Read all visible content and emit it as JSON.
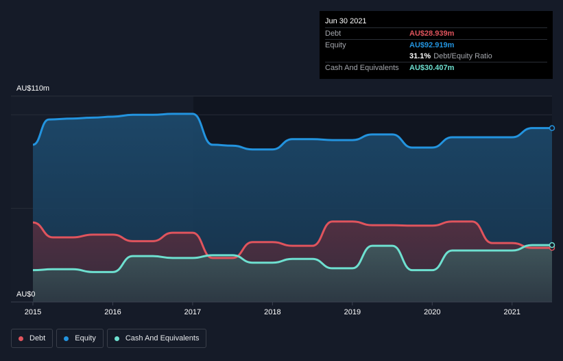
{
  "colors": {
    "debt": "#e0545d",
    "equity": "#2394df",
    "cash": "#6ee0d0"
  },
  "tooltip": {
    "date": "Jun 30 2021",
    "debt_label": "Debt",
    "debt_value": "AU$28.939m",
    "equity_label": "Equity",
    "equity_value": "AU$92.919m",
    "ratio_value": "31.1%",
    "ratio_label": "Debt/Equity Ratio",
    "cash_label": "Cash And Equivalents",
    "cash_value": "AU$30.407m"
  },
  "legend": {
    "debt": "Debt",
    "equity": "Equity",
    "cash": "Cash And Equivalents"
  },
  "chart_data": {
    "type": "area",
    "title": "",
    "xlabel": "",
    "ylabel": "",
    "y_max_label": "AU$110m",
    "y_min_label": "AU$0",
    "ylim": [
      0,
      110
    ],
    "xlim": [
      2015.0,
      2021.5
    ],
    "x_ticks": [
      {
        "value": 2015,
        "label": "2015"
      },
      {
        "value": 2016,
        "label": "2016"
      },
      {
        "value": 2017,
        "label": "2017"
      },
      {
        "value": 2018,
        "label": "2018"
      },
      {
        "value": 2019,
        "label": "2019"
      },
      {
        "value": 2020,
        "label": "2020"
      },
      {
        "value": 2021,
        "label": "2021"
      }
    ],
    "gridlines_y": [
      100,
      50
    ],
    "series": [
      {
        "name": "Equity",
        "key": "equity",
        "points": [
          [
            2015.0,
            84
          ],
          [
            2015.2,
            97.5
          ],
          [
            2015.5,
            98
          ],
          [
            2015.75,
            98.5
          ],
          [
            2016.0,
            99
          ],
          [
            2016.25,
            100
          ],
          [
            2016.5,
            100
          ],
          [
            2016.75,
            100.5
          ],
          [
            2017.0,
            100.5
          ],
          [
            2017.25,
            84
          ],
          [
            2017.5,
            83.5
          ],
          [
            2017.75,
            81.5
          ],
          [
            2018.0,
            81.5
          ],
          [
            2018.25,
            87
          ],
          [
            2018.5,
            87
          ],
          [
            2018.75,
            86.5
          ],
          [
            2019.0,
            86.5
          ],
          [
            2019.25,
            89.5
          ],
          [
            2019.5,
            89.5
          ],
          [
            2019.75,
            82.5
          ],
          [
            2020.0,
            82.5
          ],
          [
            2020.25,
            88
          ],
          [
            2020.5,
            88
          ],
          [
            2020.75,
            88
          ],
          [
            2021.0,
            88
          ],
          [
            2021.25,
            92.9
          ],
          [
            2021.5,
            92.9
          ]
        ]
      },
      {
        "name": "Debt",
        "key": "debt",
        "points": [
          [
            2015.0,
            42.5
          ],
          [
            2015.25,
            34.5
          ],
          [
            2015.5,
            34.5
          ],
          [
            2015.75,
            36
          ],
          [
            2016.0,
            36
          ],
          [
            2016.25,
            32.5
          ],
          [
            2016.5,
            32.5
          ],
          [
            2016.75,
            37
          ],
          [
            2017.0,
            37
          ],
          [
            2017.25,
            23.5
          ],
          [
            2017.5,
            23.5
          ],
          [
            2017.75,
            32
          ],
          [
            2018.0,
            32
          ],
          [
            2018.25,
            30
          ],
          [
            2018.5,
            30
          ],
          [
            2018.75,
            43
          ],
          [
            2019.0,
            43
          ],
          [
            2019.25,
            41
          ],
          [
            2019.5,
            41
          ],
          [
            2019.75,
            40.8
          ],
          [
            2020.0,
            40.8
          ],
          [
            2020.25,
            43
          ],
          [
            2020.5,
            43
          ],
          [
            2020.75,
            31.5
          ],
          [
            2021.0,
            31.5
          ],
          [
            2021.25,
            28.9
          ],
          [
            2021.5,
            28.9
          ]
        ]
      },
      {
        "name": "Cash And Equivalents",
        "key": "cash",
        "points": [
          [
            2015.0,
            17
          ],
          [
            2015.25,
            17.5
          ],
          [
            2015.5,
            17.5
          ],
          [
            2015.75,
            16
          ],
          [
            2016.0,
            16
          ],
          [
            2016.25,
            24.5
          ],
          [
            2016.5,
            24.5
          ],
          [
            2016.75,
            23.5
          ],
          [
            2017.0,
            23.5
          ],
          [
            2017.25,
            25
          ],
          [
            2017.5,
            25
          ],
          [
            2017.75,
            21
          ],
          [
            2018.0,
            21
          ],
          [
            2018.25,
            23
          ],
          [
            2018.5,
            23
          ],
          [
            2018.75,
            18
          ],
          [
            2019.0,
            18
          ],
          [
            2019.25,
            30
          ],
          [
            2019.5,
            30
          ],
          [
            2019.75,
            17
          ],
          [
            2020.0,
            17
          ],
          [
            2020.25,
            27.5
          ],
          [
            2020.5,
            27.5
          ],
          [
            2020.75,
            27.5
          ],
          [
            2021.0,
            27.5
          ],
          [
            2021.25,
            30.4
          ],
          [
            2021.5,
            30.4
          ]
        ]
      }
    ]
  }
}
